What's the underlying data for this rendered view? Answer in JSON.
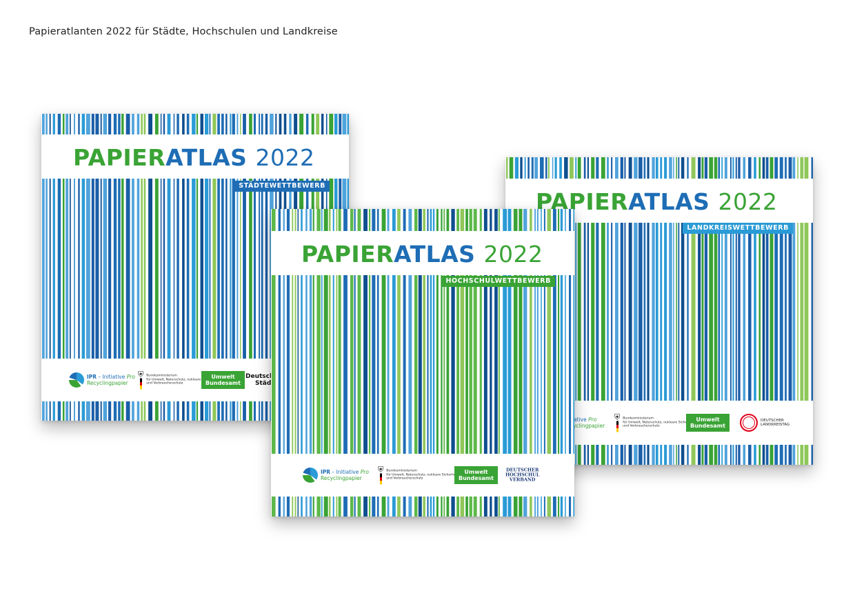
{
  "page": {
    "caption": "Papieratlanten 2022 für Städte, Hochschulen und Landkreise"
  },
  "colors": {
    "green": "#3aa335",
    "blue": "#1e6db5",
    "light_blue": "#2a9bd6",
    "stripe_palette_blue": [
      "#1e6db5",
      "#2a9bd6",
      "#1a5ea8",
      "#4fa3db",
      "#3aa335",
      "#8fc75a",
      "#0f4f8f"
    ],
    "stripe_palette_green": [
      "#3aa335",
      "#2a9bd6",
      "#1e6db5",
      "#8fc75a",
      "#5db84a",
      "#4fa3db",
      "#0f4f8f"
    ]
  },
  "covers": {
    "staedte": {
      "title_part1": "PAPIER",
      "title_part2": "ATLAS",
      "title_year": "2022",
      "badge": "STÄDTEWETTBEWERB",
      "badge_color": "#1e6db5",
      "logos": {
        "ipr_line1": "IPR",
        "ipr_line1_rest": " – Initiative ",
        "ipr_pro": "Pro",
        "ipr_line2": "Recyclingpapier",
        "bmu_line1": "Bundesministerium",
        "bmu_line2": "für Umwelt, Naturschutz, nukleare Sicherheit",
        "bmu_line3": "und Verbraucherschutz",
        "uba_line1": "Umwelt",
        "uba_line2": "Bundesamt",
        "partner_line1": "Deutscher",
        "partner_line2": "Städte"
      }
    },
    "hochschul": {
      "title_part1": "PAPIER",
      "title_part2": "ATLAS",
      "title_year": "2022",
      "badge": "HOCHSCHULWETTBEWERB",
      "badge_color": "#3aa335",
      "logos": {
        "ipr_line1": "IPR",
        "ipr_line1_rest": " – Initiative ",
        "ipr_pro": "Pro",
        "ipr_line2": "Recyclingpapier",
        "bmu_line1": "Bundesministerium",
        "bmu_line2": "für Umwelt, Naturschutz, nukleare Sicherheit",
        "bmu_line3": "und Verbraucherschutz",
        "uba_line1": "Umwelt",
        "uba_line2": "Bundesamt",
        "partner_line1": "DEUTSCHER",
        "partner_line2": "HOCHSCHUL",
        "partner_line3": "VERBAND"
      }
    },
    "landkreis": {
      "title_part1": "PAPIER",
      "title_part2": "ATLAS",
      "title_year": "2022",
      "badge": "LANDKREISWETTBEWERB",
      "badge_color": "#2a9bd6",
      "logos": {
        "ipr_line1": "tiative ",
        "ipr_pro": "Pro",
        "ipr_line2": "cyclingpapier",
        "bmu_line1": "Bundesministerium",
        "bmu_line2": "für Umwelt, Naturschutz, nukleare Sicherheit",
        "bmu_line3": "und Verbraucherschutz",
        "uba_line1": "Umwelt",
        "uba_line2": "Bundesamt",
        "partner_line1": "DEUTSCHER",
        "partner_line2": "LANDKREISTAG"
      }
    }
  }
}
